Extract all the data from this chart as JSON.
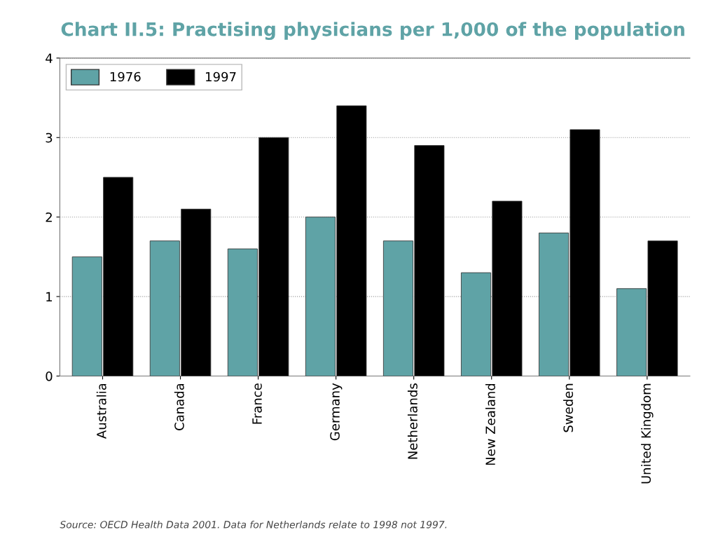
{
  "chart_data": {
    "type": "bar",
    "title": "Chart II.5: Practising physicians per 1,000 of the population",
    "categories": [
      "Australia",
      "Canada",
      "France",
      "Germany",
      "Netherlands",
      "New Zealand",
      "Sweden",
      "United Kingdom"
    ],
    "series": [
      {
        "name": "1976",
        "color": "#5fa3a6",
        "values": [
          1.5,
          1.7,
          1.6,
          2.0,
          1.7,
          1.3,
          1.8,
          1.1
        ]
      },
      {
        "name": "1997",
        "color": "#000000",
        "values": [
          2.5,
          2.1,
          3.0,
          3.4,
          2.9,
          2.2,
          3.1,
          1.7
        ]
      }
    ],
    "ylim": [
      0,
      4
    ],
    "yticks": [
      0,
      1,
      2,
      3,
      4
    ],
    "grid": "y",
    "legend": "top left",
    "annotations": [
      "Source: OECD Health Data 2001. Data for Netherlands relate to 1998 not 1997."
    ]
  }
}
